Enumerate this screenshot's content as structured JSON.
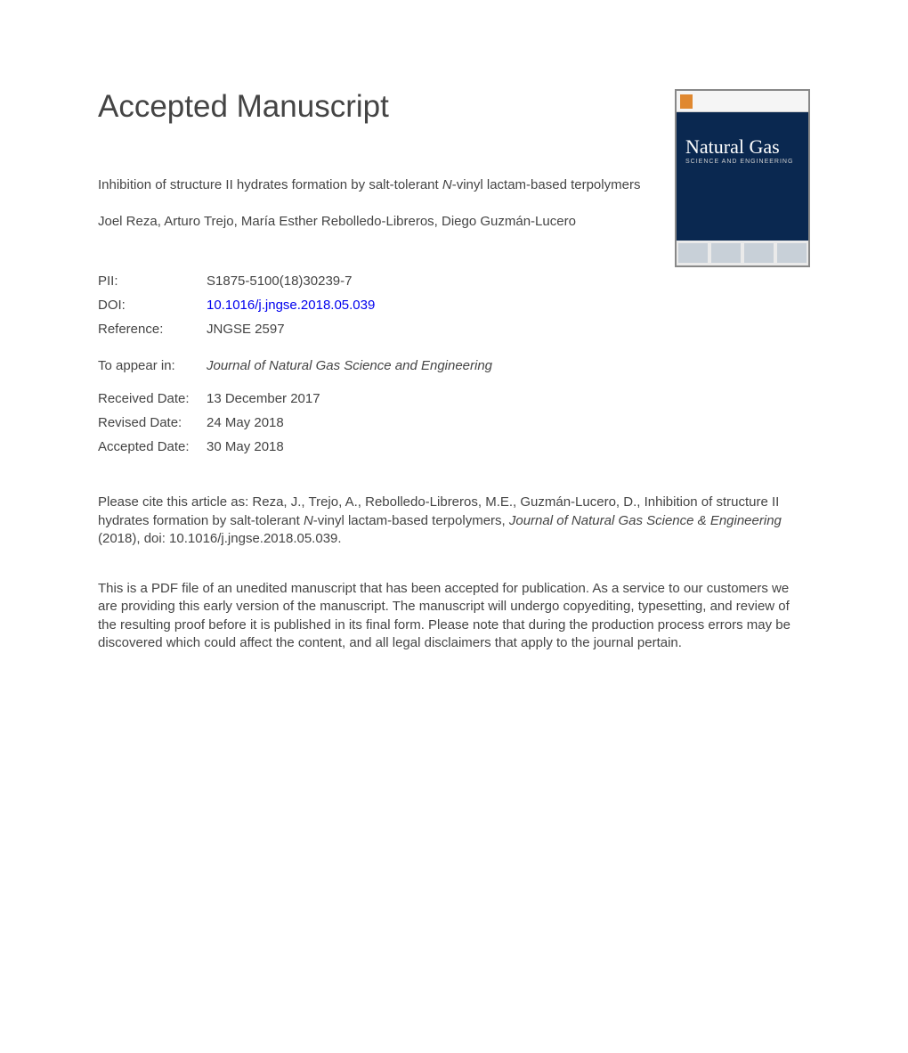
{
  "heading": "Accepted Manuscript",
  "article_title_pre": "Inhibition of structure II hydrates formation by salt-tolerant ",
  "article_title_n": "N",
  "article_title_post": "-vinyl lactam-based terpolymers",
  "authors": "Joel Reza, Arturo Trejo, María Esther Rebolledo-Libreros, Diego Guzmán-Lucero",
  "meta": {
    "pii_label": "PII:",
    "pii_value": "S1875-5100(18)30239-7",
    "doi_label": "DOI:",
    "doi_value": "10.1016/j.jngse.2018.05.039",
    "ref_label": "Reference:",
    "ref_value": "JNGSE 2597",
    "appear_label": "To appear in:",
    "appear_value": "Journal of Natural Gas Science and Engineering",
    "received_label": "Received Date:",
    "received_value": "13 December 2017",
    "revised_label": "Revised Date:",
    "revised_value": "24 May 2018",
    "accepted_label": "Accepted Date:",
    "accepted_value": "30 May 2018"
  },
  "citation_pre": "Please cite this article as: Reza, J., Trejo, A., Rebolledo-Libreros, M.E., Guzmán-Lucero, D., Inhibition of structure II hydrates formation by salt-tolerant ",
  "citation_n": "N",
  "citation_mid": "-vinyl lactam-based terpolymers, ",
  "citation_journal": "Journal of Natural Gas Science & Engineering",
  "citation_post": " (2018), doi: 10.1016/j.jngse.2018.05.039.",
  "disclaimer": "This is a PDF file of an unedited manuscript that has been accepted for publication. As a service to our customers we are providing this early version of the manuscript. The manuscript will undergo copyediting, typesetting, and review of the resulting proof before it is published in its final form. Please note that during the production process errors may be discovered which could affect the content, and all legal disclaimers that apply to the journal pertain.",
  "cover": {
    "title": "Natural Gas",
    "subtitle": "SCIENCE AND ENGINEERING",
    "bg_color": "#0a2850",
    "border_color": "#888888"
  }
}
